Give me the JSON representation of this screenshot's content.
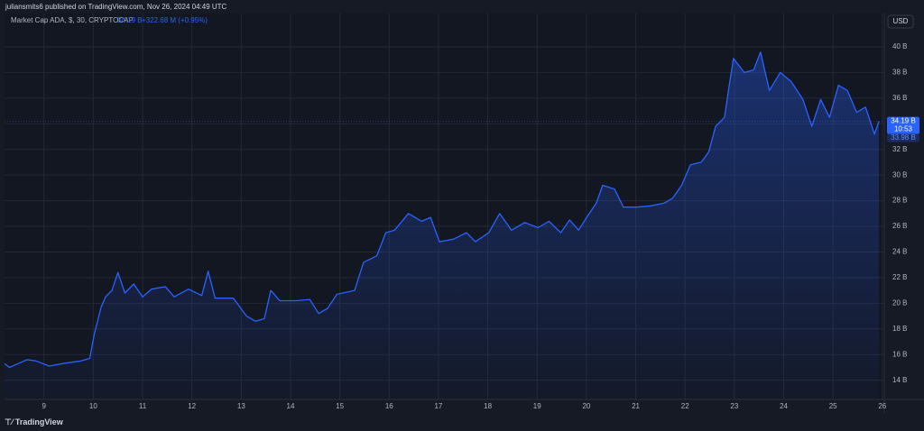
{
  "header": {
    "text": "juliansmits6 published on TradingView.com, Nov 26, 2024 04:49 UTC"
  },
  "footer": {
    "brand": "TradingView"
  },
  "chart_data": {
    "type": "area",
    "title": "Market Cap ADA, $, 30, CRYPTOCAP",
    "legend_value": "34.19 B",
    "legend_change": "+322.68 M (+0.95%)",
    "currency": "USD",
    "price_line": {
      "value": 34.19,
      "label": "34.19 B"
    },
    "countdown": "10:53",
    "second_price_label": "33.98 B",
    "color": "#2962ff",
    "grid": true,
    "xlim": [
      8.2,
      26.04
    ],
    "ylim": [
      12.5,
      42.6
    ],
    "xticks": [
      9,
      10,
      11,
      12,
      13,
      14,
      15,
      16,
      17,
      18,
      19,
      20,
      21,
      22,
      23,
      24,
      25,
      26
    ],
    "yticks": [
      {
        "value": 14,
        "label": "14 B"
      },
      {
        "value": 16,
        "label": "16 B"
      },
      {
        "value": 18,
        "label": "18 B"
      },
      {
        "value": 20,
        "label": "20 B"
      },
      {
        "value": 22,
        "label": "22 B"
      },
      {
        "value": 24,
        "label": "24 B"
      },
      {
        "value": 26,
        "label": "26 B"
      },
      {
        "value": 28,
        "label": "28 B"
      },
      {
        "value": 30,
        "label": "30 B"
      },
      {
        "value": 32,
        "label": "32 B"
      },
      {
        "value": 34,
        "label": "34 B"
      },
      {
        "value": 36,
        "label": "36 B"
      },
      {
        "value": 38,
        "label": "38 B"
      },
      {
        "value": 40,
        "label": "40 B"
      }
    ],
    "x": [
      8.2,
      8.3,
      8.48,
      8.66,
      8.84,
      9.11,
      9.38,
      9.75,
      9.93,
      10.02,
      10.16,
      10.25,
      10.38,
      10.5,
      10.64,
      10.82,
      11.0,
      11.18,
      11.46,
      11.64,
      11.93,
      12.2,
      12.33,
      12.47,
      12.84,
      13.11,
      13.29,
      13.47,
      13.6,
      13.78,
      14.12,
      14.39,
      14.57,
      14.75,
      14.94,
      15.3,
      15.48,
      15.75,
      15.93,
      16.11,
      16.39,
      16.66,
      16.84,
      17.02,
      17.3,
      17.57,
      17.75,
      18.02,
      18.24,
      18.48,
      18.75,
      19.02,
      19.24,
      19.48,
      19.66,
      19.84,
      20.02,
      20.2,
      20.33,
      20.57,
      20.75,
      21.02,
      21.3,
      21.57,
      21.75,
      21.93,
      22.11,
      22.33,
      22.48,
      22.62,
      22.8,
      22.88,
      22.98,
      23.2,
      23.39,
      23.53,
      23.71,
      23.93,
      24.15,
      24.39,
      24.57,
      24.75,
      24.93,
      25.11,
      25.29,
      25.48,
      25.66,
      25.84,
      25.93
    ],
    "values": [
      15.3,
      15.0,
      15.3,
      15.6,
      15.5,
      15.1,
      15.3,
      15.5,
      15.7,
      17.6,
      19.7,
      20.5,
      21.0,
      22.4,
      20.8,
      21.5,
      20.5,
      21.1,
      21.3,
      20.5,
      21.1,
      20.6,
      22.5,
      20.4,
      20.4,
      19.0,
      18.6,
      18.8,
      21.0,
      20.2,
      20.2,
      20.3,
      19.2,
      19.6,
      20.7,
      21.0,
      23.2,
      23.7,
      25.5,
      25.7,
      27.0,
      26.4,
      26.7,
      24.8,
      25.0,
      25.5,
      24.8,
      25.5,
      27.0,
      25.7,
      26.3,
      25.9,
      26.4,
      25.5,
      26.5,
      25.7,
      26.8,
      27.8,
      29.2,
      28.9,
      27.5,
      27.5,
      27.6,
      27.8,
      28.2,
      29.2,
      30.8,
      31.0,
      31.8,
      33.8,
      34.5,
      36.6,
      39.1,
      38.0,
      38.2,
      39.6,
      36.6,
      38.0,
      37.3,
      35.9,
      33.8,
      35.9,
      34.5,
      37.0,
      36.6,
      34.9,
      35.3,
      33.2,
      34.19
    ]
  }
}
